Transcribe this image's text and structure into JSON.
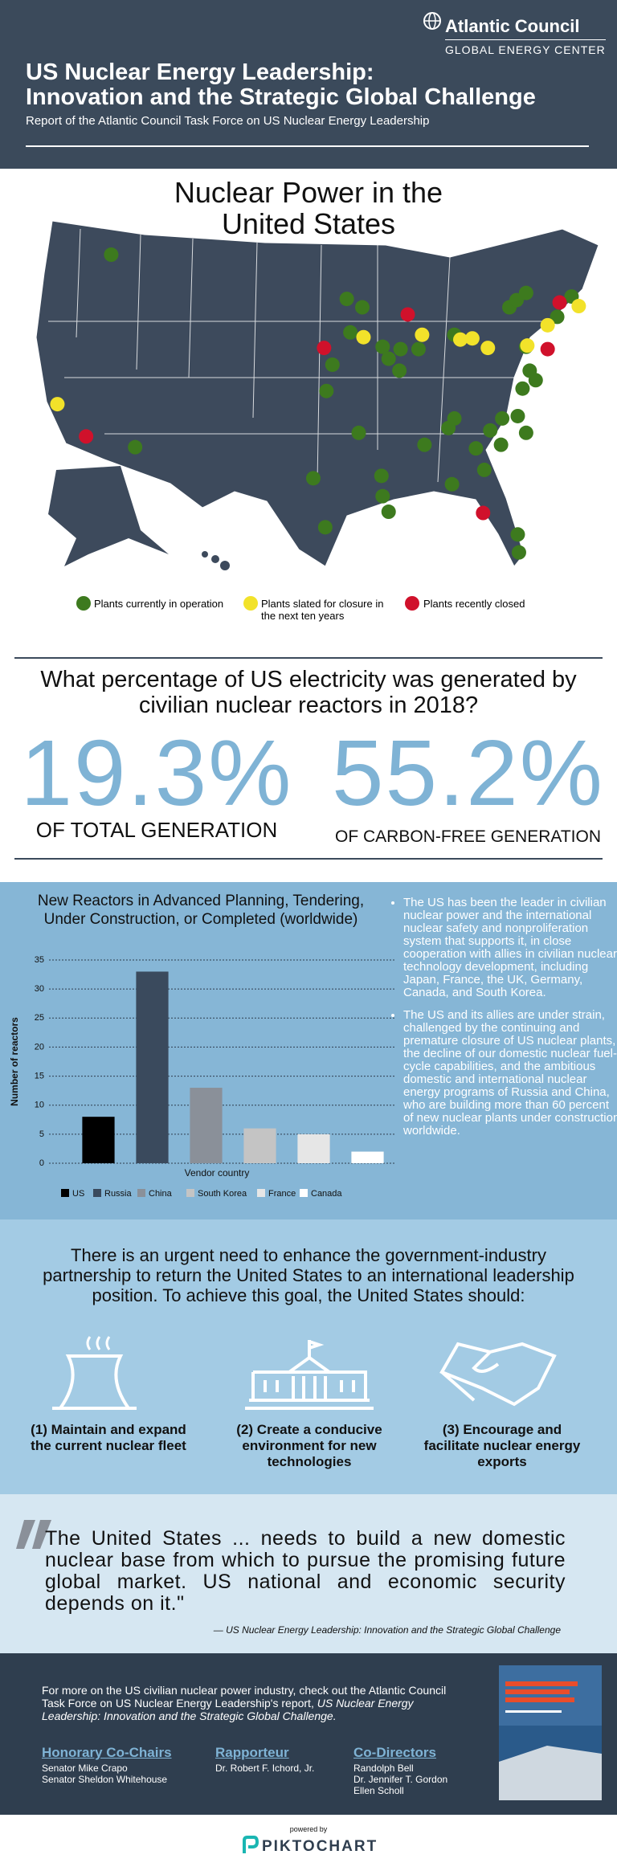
{
  "header": {
    "org": "Atlantic Council",
    "center": "GLOBAL ENERGY CENTER",
    "title_lines": [
      "US Nuclear Energy Leadership:",
      "Innovation and the Strategic Global Challenge"
    ],
    "subtitle": "Report of the Atlantic Council Task Force on US Nuclear Energy Leadership"
  },
  "map": {
    "title_lines": [
      "Nuclear Power in the",
      "United States"
    ],
    "legend": [
      "Plants currently in operation",
      "Plants slated for closure in the next ten years",
      "Plants recently closed"
    ]
  },
  "question": {
    "text": "What percentage of US electricity was generated by civilian nuclear reactors in 2018?",
    "stats": [
      {
        "value": "19.3%",
        "label": "OF TOTAL GENERATION"
      },
      {
        "value": "55.2%",
        "label": "OF CARBON-FREE GENERATION"
      }
    ]
  },
  "chart_data": {
    "type": "bar",
    "title": "New Reactors in Advanced Planning, Tendering, Under Construction, or Completed (worldwide)",
    "x_label": "Vendor country",
    "y_label": "Number of reactors",
    "categories": [
      "US",
      "Russia",
      "China",
      "South Korea",
      "France",
      "Canada"
    ],
    "values": [
      8,
      33,
      13,
      6,
      5,
      2
    ],
    "colors": [
      "#000000",
      "#3a4a5d",
      "#8a9099",
      "#c4c4c4",
      "#e6e6e6",
      "#ffffff"
    ],
    "ylim": [
      0,
      35
    ],
    "yticks": [
      0,
      5,
      10,
      15,
      20,
      25,
      30,
      35
    ],
    "grid": true
  },
  "bullets": [
    "The US has been the leader in civilian nuclear power and the international nuclear safety and nonproliferation system that supports it, in close cooperation with allies in civilian nuclear technology development, including Japan, France, the UK, Germany, Canada, and South Korea.",
    "The US and its allies are under strain, challenged by the continuing and premature closure of US nuclear plants, the decline of our domestic nuclear fuel-cycle capabilities, and the ambitious domestic and international nuclear energy programs of Russia and China, who are building more than 60 percent of new nuclear plants under construction worldwide."
  ],
  "goals": {
    "intro": "There is an urgent need to enhance the government-industry partnership to return the United States to an international leadership position. To achieve this goal, the United States should:",
    "items": [
      "(1) Maintain and expand the current nuclear fleet",
      "(2) Create a conducive environment for new technologies",
      "(3) Encourage and facilitate nuclear energy exports"
    ]
  },
  "quote": {
    "text": "The United States ... needs to build a new domestic nuclear base from which to pursue the promising future global market. US national and economic security depends on it.\"",
    "attribution": "— US Nuclear Energy Leadership: Innovation and the Strategic Global Challenge"
  },
  "footer": {
    "intro": "For more on the US civilian nuclear power industry, check out the Atlantic Council Task Force on US Nuclear Energy Leadership's report,",
    "report_title": "US Nuclear Energy Leadership: Innovation and the Strategic Global Challenge.",
    "groups": [
      {
        "heading": "Honorary Co-Chairs",
        "names": [
          "Senator Mike Crapo",
          "Senator Sheldon Whitehouse"
        ]
      },
      {
        "heading": "Rapporteur",
        "names": [
          "Dr. Robert F. Ichord, Jr."
        ]
      },
      {
        "heading": "Co-Directors",
        "names": [
          "Randolph Bell",
          "Dr. Jennifer T. Gordon",
          "Ellen Scholl"
        ]
      }
    ]
  },
  "credit": {
    "powered": "powered by",
    "brand": "PIKTOCHART"
  }
}
